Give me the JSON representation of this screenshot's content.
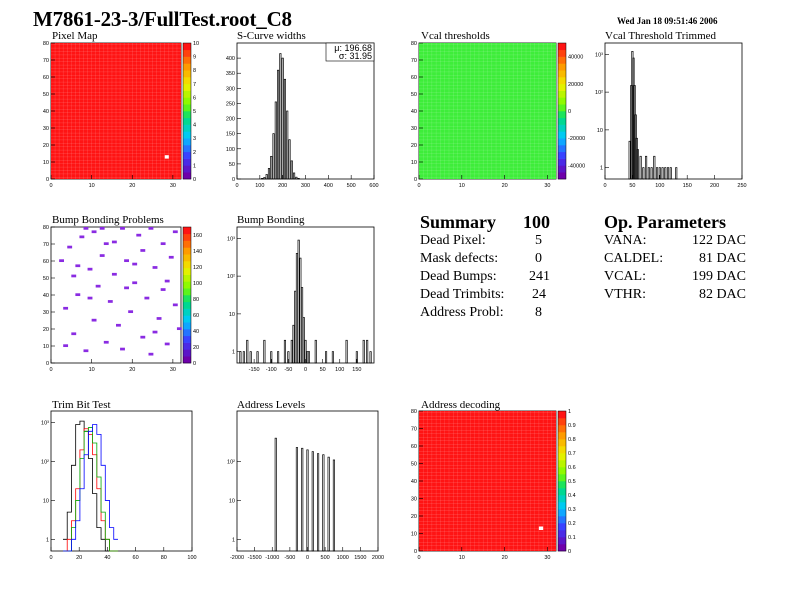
{
  "header": {
    "title": "M7861-23-3/FullTest.root_C8",
    "date": "Wed Jan 18 09:51:46 2006"
  },
  "summary": {
    "title": "Summary",
    "score": "100",
    "rows": [
      {
        "label": "Dead Pixel:",
        "value": "5"
      },
      {
        "label": "Mask defects:",
        "value": "0"
      },
      {
        "label": "Dead Bumps:",
        "value": "241"
      },
      {
        "label": "Dead Trimbits:",
        "value": "24"
      },
      {
        "label": "Address Probl:",
        "value": "8"
      }
    ]
  },
  "op_parameters": {
    "title": "Op. Parameters",
    "rows": [
      {
        "label": "VANA:",
        "value": "122 DAC"
      },
      {
        "label": "CALDEL:",
        "value": "81 DAC"
      },
      {
        "label": "VCAL:",
        "value": "199 DAC"
      },
      {
        "label": "VTHR:",
        "value": "82 DAC"
      }
    ]
  },
  "colors": {
    "red_map": "#ff1a1a",
    "green_map": "#7cfc00",
    "bump_marks": "#8a2be2",
    "white_pixel": "#ffffff"
  },
  "chart_data": [
    {
      "id": "pixel-map",
      "type": "heatmap",
      "title": "Pixel Map",
      "xlim": [
        0,
        32
      ],
      "ylim": [
        0,
        80
      ],
      "xticks": [
        "0",
        "10",
        "20",
        "30"
      ],
      "yticks": [
        "0",
        "10",
        "20",
        "30",
        "40",
        "50",
        "60",
        "70",
        "80"
      ],
      "zticks": [
        "0",
        "1",
        "2",
        "3",
        "4",
        "5",
        "6",
        "7",
        "8",
        "9",
        "10"
      ],
      "zlim": [
        0,
        10
      ],
      "fill_value": 10,
      "outliers": [
        {
          "x": 28,
          "y": 13,
          "z": 0
        }
      ]
    },
    {
      "id": "scurve-widths",
      "type": "bar",
      "title": "S-Curve widths",
      "xlim": [
        0,
        600
      ],
      "ylim": [
        0,
        450
      ],
      "xticks": [
        "0",
        "100",
        "200",
        "300",
        "400",
        "500",
        "600"
      ],
      "yticks": [
        "0",
        "50",
        "100",
        "150",
        "200",
        "250",
        "300",
        "350",
        "400"
      ],
      "stats": {
        "mean_label": "μ: 196.68",
        "sigma_label": "σ: 31.95"
      },
      "x": [
        110,
        120,
        130,
        140,
        150,
        160,
        170,
        180,
        190,
        200,
        210,
        220,
        230,
        240,
        250,
        260,
        270
      ],
      "values": [
        2,
        5,
        15,
        35,
        75,
        150,
        255,
        360,
        415,
        400,
        330,
        225,
        130,
        60,
        20,
        6,
        2
      ]
    },
    {
      "id": "vcal-thresholds",
      "type": "heatmap",
      "title": "Vcal thresholds",
      "xlim": [
        0,
        32
      ],
      "ylim": [
        0,
        80
      ],
      "xticks": [
        "0",
        "10",
        "20",
        "30"
      ],
      "yticks": [
        "0",
        "10",
        "20",
        "30",
        "40",
        "50",
        "60",
        "70",
        "80"
      ],
      "zticks": [
        "-40000",
        "-20000",
        "0",
        "20000",
        "40000"
      ],
      "zlim": [
        -50000,
        50000
      ],
      "fill_value": 200
    },
    {
      "id": "vcal-threshold-trimmed",
      "type": "bar",
      "title": "Vcal Threshold Trimmed",
      "log_y": true,
      "xlim": [
        0,
        250
      ],
      "ylim": [
        0.5,
        2000
      ],
      "xticks": [
        "0",
        "50",
        "100",
        "150",
        "200",
        "250"
      ],
      "yticks": [
        "1",
        "10",
        "10²",
        "10³"
      ],
      "x": [
        45,
        48,
        50,
        52,
        54,
        56,
        58,
        60,
        65,
        70,
        75,
        80,
        85,
        90,
        95,
        100,
        105,
        110,
        115,
        120,
        130
      ],
      "values": [
        5,
        150,
        1200,
        800,
        150,
        25,
        6,
        3,
        2,
        1,
        2,
        1,
        1,
        2,
        1,
        1,
        1,
        1,
        1,
        1,
        1
      ]
    },
    {
      "id": "bump-bonding-problems",
      "type": "heatmap",
      "title": "Bump Bonding Problems",
      "xlim": [
        0,
        32
      ],
      "ylim": [
        0,
        80
      ],
      "xticks": [
        "0",
        "10",
        "20",
        "30"
      ],
      "yticks": [
        "0",
        "10",
        "20",
        "30",
        "40",
        "50",
        "60",
        "70",
        "80"
      ],
      "zticks": [
        "0",
        "20",
        "40",
        "60",
        "80",
        "100",
        "120",
        "140",
        "160"
      ],
      "zlim": [
        0,
        170
      ],
      "points": [
        [
          2,
          60
        ],
        [
          3,
          32
        ],
        [
          4,
          68
        ],
        [
          5,
          17
        ],
        [
          5,
          51
        ],
        [
          6,
          40
        ],
        [
          7,
          74
        ],
        [
          8,
          7
        ],
        [
          9,
          55
        ],
        [
          10,
          25
        ],
        [
          10,
          77
        ],
        [
          11,
          45
        ],
        [
          12,
          63
        ],
        [
          13,
          12
        ],
        [
          14,
          36
        ],
        [
          15,
          71
        ],
        [
          15,
          52
        ],
        [
          16,
          22
        ],
        [
          17,
          8
        ],
        [
          18,
          60
        ],
        [
          19,
          30
        ],
        [
          20,
          47
        ],
        [
          21,
          75
        ],
        [
          22,
          15
        ],
        [
          22,
          66
        ],
        [
          23,
          38
        ],
        [
          24,
          5
        ],
        [
          25,
          56
        ],
        [
          26,
          26
        ],
        [
          27,
          70
        ],
        [
          27,
          43
        ],
        [
          28,
          11
        ],
        [
          29,
          62
        ],
        [
          30,
          34
        ],
        [
          30,
          77
        ],
        [
          31,
          20
        ],
        [
          6,
          57
        ],
        [
          13,
          70
        ],
        [
          18,
          44
        ],
        [
          25,
          18
        ],
        [
          3,
          10
        ],
        [
          9,
          38
        ],
        [
          20,
          58
        ],
        [
          28,
          48
        ],
        [
          12,
          79
        ],
        [
          24,
          79
        ],
        [
          17,
          79
        ],
        [
          8,
          79
        ]
      ]
    },
    {
      "id": "bump-bonding",
      "type": "bar",
      "title": "Bump Bonding",
      "log_y": true,
      "xlim": [
        -200,
        200
      ],
      "ylim": [
        0.5,
        2000
      ],
      "xticks": [
        "-150",
        "-100",
        "-50",
        "0",
        "50",
        "100",
        "150"
      ],
      "yticks": [
        "1",
        "10",
        "10²",
        "10³"
      ],
      "x": [
        -190,
        -180,
        -170,
        -160,
        -140,
        -120,
        -100,
        -80,
        -60,
        -50,
        -40,
        -35,
        -30,
        -25,
        -20,
        -15,
        -10,
        -5,
        0,
        5,
        10,
        30,
        60,
        80,
        120,
        150,
        170,
        180,
        190
      ],
      "values": [
        1,
        1,
        2,
        1,
        1,
        2,
        1,
        1,
        2,
        1,
        2,
        5,
        40,
        400,
        900,
        300,
        50,
        8,
        2,
        1,
        1,
        2,
        1,
        1,
        2,
        1,
        2,
        2,
        1
      ]
    },
    {
      "id": "trim-bit-test",
      "type": "line",
      "title": "Trim Bit Test",
      "log_y": true,
      "xlim": [
        0,
        100
      ],
      "ylim": [
        0.5,
        2000
      ],
      "xticks": [
        "0",
        "20",
        "40",
        "60",
        "80",
        "100"
      ],
      "yticks": [
        "1",
        "10",
        "10²",
        "10³"
      ],
      "x": [
        10,
        13,
        16,
        19,
        22,
        25,
        28,
        31,
        34,
        37,
        40,
        43,
        46
      ],
      "series": [
        {
          "color": "#000000",
          "values": [
            1,
            5,
            80,
            900,
            1100,
            600,
            120,
            15,
            2,
            1,
            0,
            0,
            0
          ]
        },
        {
          "color": "#ff0000",
          "values": [
            0,
            1,
            3,
            20,
            200,
            700,
            500,
            150,
            20,
            3,
            1,
            0,
            0
          ]
        },
        {
          "color": "#00aa00",
          "values": [
            0,
            0,
            2,
            10,
            120,
            600,
            750,
            300,
            40,
            5,
            1,
            0,
            0
          ]
        },
        {
          "color": "#0000ff",
          "values": [
            0,
            0,
            1,
            3,
            20,
            150,
            600,
            900,
            500,
            80,
            10,
            2,
            1
          ]
        }
      ]
    },
    {
      "id": "address-levels",
      "type": "bar",
      "title": "Address Levels",
      "log_y": true,
      "xlim": [
        -2000,
        2000
      ],
      "ylim": [
        0.5,
        2000
      ],
      "xticks": [
        "-2000",
        "-1500",
        "-1000",
        "-500",
        "0",
        "500",
        "1000",
        "1500",
        "2000"
      ],
      "yticks": [
        "1",
        "10",
        "10²"
      ],
      "x": [
        -900,
        -300,
        -150,
        0,
        150,
        300,
        450,
        600,
        750
      ],
      "values": [
        400,
        230,
        220,
        200,
        180,
        160,
        150,
        130,
        110
      ]
    },
    {
      "id": "address-decoding",
      "type": "heatmap",
      "title": "Address decoding",
      "xlim": [
        0,
        32
      ],
      "ylim": [
        0,
        80
      ],
      "xticks": [
        "0",
        "10",
        "20",
        "30"
      ],
      "yticks": [
        "0",
        "10",
        "20",
        "30",
        "40",
        "50",
        "60",
        "70",
        "80"
      ],
      "zticks": [
        "0",
        "0.1",
        "0.2",
        "0.3",
        "0.4",
        "0.5",
        "0.6",
        "0.7",
        "0.8",
        "0.9",
        "1"
      ],
      "zlim": [
        0,
        1
      ],
      "fill_value": 1,
      "outliers": [
        {
          "x": 28,
          "y": 13,
          "z": 0
        }
      ]
    }
  ]
}
